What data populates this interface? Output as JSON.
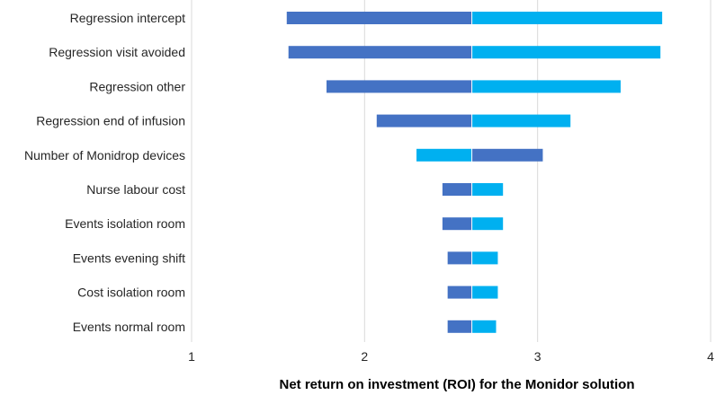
{
  "chart_data": {
    "type": "bar",
    "subtype": "tornado",
    "title": "",
    "xlabel": "Net return on investment (ROI) for the Monidor solution",
    "ylabel": "",
    "xlim": [
      1,
      4
    ],
    "xticks": [
      "1",
      "2",
      "3",
      "4"
    ],
    "grid": true,
    "legend": "none",
    "base_value": 2.62,
    "colors": {
      "dark": "#4472c4",
      "light": "#00b0f0"
    },
    "categories": [
      "Regression intercept",
      "Regression visit avoided",
      "Regression other",
      "Regression end of infusion",
      "Number of Monidrop devices",
      "Nurse labour cost",
      "Events isolation room",
      "Events evening shift",
      "Cost isolation room",
      "Events normal room"
    ],
    "bars": [
      {
        "low": 1.55,
        "high": 3.72,
        "low_color": "dark",
        "high_color": "light"
      },
      {
        "low": 1.56,
        "high": 3.71,
        "low_color": "dark",
        "high_color": "light"
      },
      {
        "low": 1.78,
        "high": 3.48,
        "low_color": "dark",
        "high_color": "light"
      },
      {
        "low": 2.07,
        "high": 3.19,
        "low_color": "dark",
        "high_color": "light"
      },
      {
        "low": 2.3,
        "high": 3.03,
        "low_color": "light",
        "high_color": "dark"
      },
      {
        "low": 2.45,
        "high": 2.8,
        "low_color": "dark",
        "high_color": "light"
      },
      {
        "low": 2.45,
        "high": 2.8,
        "low_color": "dark",
        "high_color": "light"
      },
      {
        "low": 2.48,
        "high": 2.77,
        "low_color": "dark",
        "high_color": "light"
      },
      {
        "low": 2.48,
        "high": 2.77,
        "low_color": "dark",
        "high_color": "light"
      },
      {
        "low": 2.48,
        "high": 2.76,
        "low_color": "dark",
        "high_color": "light"
      }
    ]
  }
}
